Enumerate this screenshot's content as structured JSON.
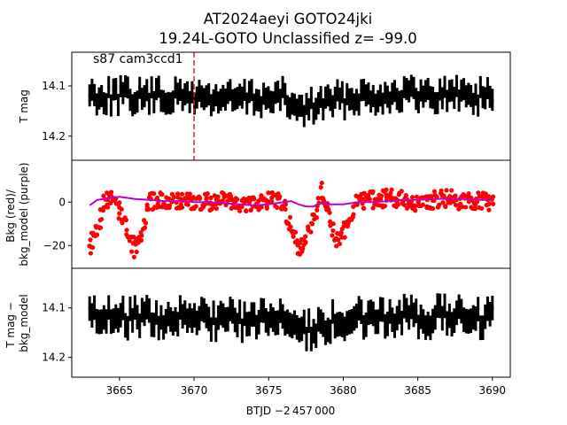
{
  "figure": {
    "title_line1": "AT2024aeyi  GOTO24jki",
    "title_line2": "19.24L-GOTO Unclassified z= -99.0",
    "xlabel": "BTJD −2 457 000",
    "panel1_annotation": "s87 cam3ccd1",
    "colors": {
      "lightcurve": "#000000",
      "background": "#ff0000",
      "bkg_model": "#bf00bf",
      "marker_line": "#d62728"
    }
  },
  "chart_data": [
    {
      "type": "scatter",
      "panel": "top",
      "ylabel": "T mag",
      "yticks": [
        "14.1",
        "14.2"
      ],
      "ylim": [
        14.248,
        14.033
      ],
      "y_inverted": true,
      "xlim": [
        3661.8,
        3691.2
      ],
      "xticks": [
        "3665",
        "3670",
        "3675",
        "3680",
        "3685",
        "3690"
      ],
      "marker_x": 3670.0,
      "series": [
        {
          "color": "#000000",
          "x": [
            3663.0,
            3664.0,
            3665.0,
            3666.0,
            3667.0,
            3668.0,
            3669.0,
            3670.0,
            3671.0,
            3672.0,
            3673.0,
            3674.0,
            3675.0,
            3676.0,
            3677.0,
            3678.0,
            3679.0,
            3680.0,
            3681.0,
            3682.0,
            3683.0,
            3684.0,
            3685.0,
            3686.0,
            3687.0,
            3688.0,
            3689.0,
            3690.0
          ],
          "y": [
            14.115,
            14.12,
            14.118,
            14.122,
            14.12,
            14.121,
            14.122,
            14.12,
            14.125,
            14.124,
            14.126,
            14.123,
            14.127,
            14.122,
            14.15,
            14.14,
            14.13,
            14.128,
            14.118,
            14.12,
            14.118,
            14.115,
            14.12,
            14.118,
            14.117,
            14.115,
            14.12,
            14.117
          ],
          "spread": 0.04
        }
      ]
    },
    {
      "type": "scatter",
      "panel": "middle",
      "ylabel": "Bkg (red)/\nbkg_model (purple)",
      "yticks": [
        "0",
        "−20"
      ],
      "ylim": [
        -30.5,
        19.3
      ],
      "xlim": [
        3661.8,
        3691.2
      ],
      "series": [
        {
          "name": "Bkg",
          "color": "#ff0000",
          "x": [
            3663.0,
            3663.5,
            3664.0,
            3664.5,
            3665.0,
            3665.5,
            3666.0,
            3666.5,
            3667.0,
            3668.0,
            3669.0,
            3670.0,
            3671.0,
            3672.0,
            3673.0,
            3674.0,
            3675.0,
            3676.0,
            3676.5,
            3677.0,
            3677.5,
            3678.0,
            3678.5,
            3679.0,
            3679.5,
            3680.0,
            3680.5,
            3681.0,
            3682.0,
            3683.0,
            3684.0,
            3685.0,
            3686.0,
            3687.0,
            3688.0,
            3689.0,
            3690.0
          ],
          "y": [
            -20,
            -12,
            0,
            2,
            -5,
            -12,
            -22,
            -15,
            0,
            1,
            0,
            1,
            0,
            1,
            -1,
            0,
            1,
            0,
            -12,
            -22,
            -18,
            -10,
            5,
            -5,
            -18,
            -15,
            -5,
            0,
            1,
            2,
            1,
            0,
            1,
            2,
            0,
            1,
            0
          ],
          "spread": 8
        },
        {
          "name": "bkg_model",
          "color": "#bf00bf",
          "x": [
            3663.0,
            3663.5,
            3664.0,
            3665.0,
            3666.0,
            3667.0,
            3668.0,
            3669.0,
            3670.0,
            3671.0,
            3672.0,
            3673.0,
            3674.0,
            3675.0,
            3676.0,
            3676.5,
            3677.0,
            3677.5,
            3678.0,
            3678.5,
            3679.0,
            3680.0,
            3681.0,
            3682.0,
            3683.0,
            3684.0,
            3685.0,
            3686.0,
            3687.0,
            3688.0,
            3689.0,
            3690.0
          ],
          "y": [
            -1.5,
            1.0,
            1.5,
            2.5,
            1.5,
            1.0,
            0.5,
            0.5,
            0.0,
            0.0,
            -0.5,
            -1.0,
            -1.5,
            -1.0,
            0.0,
            0.5,
            -1.0,
            -2.0,
            -2.0,
            0.0,
            -1.0,
            -1.0,
            0.0,
            0.0,
            0.5,
            1.0,
            1.0,
            1.5,
            1.5,
            1.5,
            1.0,
            1.0
          ]
        }
      ]
    },
    {
      "type": "scatter",
      "panel": "bottom",
      "ylabel": "T mag −\nbkg_model",
      "yticks": [
        "14.1",
        "14.2"
      ],
      "ylim": [
        14.24,
        14.02
      ],
      "y_inverted": true,
      "xlim": [
        3661.8,
        3691.2
      ],
      "series": [
        {
          "color": "#000000",
          "x": [
            3663.0,
            3664.0,
            3665.0,
            3666.0,
            3667.0,
            3668.0,
            3669.0,
            3670.0,
            3671.0,
            3672.0,
            3673.0,
            3674.0,
            3675.0,
            3676.0,
            3677.0,
            3678.0,
            3679.0,
            3680.0,
            3681.0,
            3682.0,
            3683.0,
            3684.0,
            3685.0,
            3686.0,
            3687.0,
            3688.0,
            3689.0,
            3690.0
          ],
          "y": [
            14.11,
            14.115,
            14.118,
            14.12,
            14.12,
            14.122,
            14.12,
            14.12,
            14.122,
            14.124,
            14.125,
            14.123,
            14.125,
            14.12,
            14.145,
            14.14,
            14.13,
            14.125,
            14.12,
            14.12,
            14.118,
            14.115,
            14.12,
            14.118,
            14.117,
            14.115,
            14.12,
            14.117
          ],
          "spread": 0.045
        }
      ]
    }
  ]
}
